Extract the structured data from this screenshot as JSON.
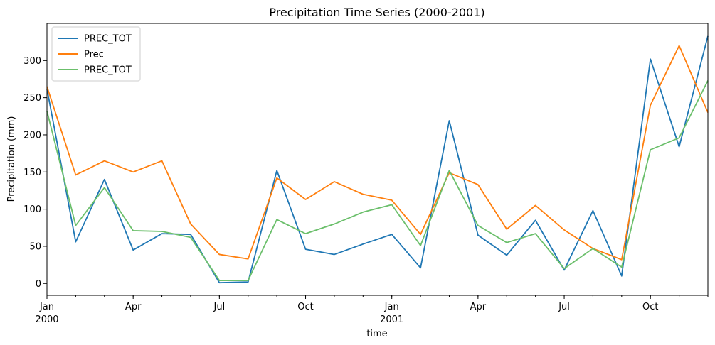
{
  "chart_data": {
    "type": "line",
    "title": "Precipitation Time Series (2000-2001)",
    "xlabel": "time",
    "ylabel": "Precipitation (mm)",
    "x": [
      "2000-01",
      "2000-02",
      "2000-03",
      "2000-04",
      "2000-05",
      "2000-06",
      "2000-07",
      "2000-08",
      "2000-09",
      "2000-10",
      "2000-11",
      "2000-12",
      "2001-01",
      "2001-02",
      "2001-03",
      "2001-04",
      "2001-05",
      "2001-06",
      "2001-07",
      "2001-08",
      "2001-09",
      "2001-10",
      "2001-11",
      "2001-12"
    ],
    "xlim": [
      "2000-01",
      "2001-12"
    ],
    "ylim": [
      -16,
      350
    ],
    "x_ticks": [
      {
        "x": "2000-01",
        "label": "Jan",
        "sublabel": "2000"
      },
      {
        "x": "2000-04",
        "label": "Apr",
        "sublabel": ""
      },
      {
        "x": "2000-07",
        "label": "Jul",
        "sublabel": ""
      },
      {
        "x": "2000-10",
        "label": "Oct",
        "sublabel": ""
      },
      {
        "x": "2001-01",
        "label": "Jan",
        "sublabel": "2001"
      },
      {
        "x": "2001-04",
        "label": "Apr",
        "sublabel": ""
      },
      {
        "x": "2001-07",
        "label": "Jul",
        "sublabel": ""
      },
      {
        "x": "2001-10",
        "label": "Oct",
        "sublabel": ""
      }
    ],
    "y_ticks": [
      0,
      50,
      100,
      150,
      200,
      250,
      300
    ],
    "grid": false,
    "legend_position": "top-left",
    "series": [
      {
        "name": "PREC_TOT",
        "color": "#1f77b4",
        "values": [
          262,
          56,
          140,
          45,
          67,
          66,
          1,
          2,
          152,
          46,
          39,
          53,
          66,
          21,
          219,
          65,
          38,
          85,
          18,
          98,
          10,
          302,
          184,
          333
        ]
      },
      {
        "name": "Prec",
        "color": "#ff7f0e",
        "values": [
          265,
          146,
          165,
          150,
          165,
          80,
          39,
          33,
          142,
          113,
          137,
          120,
          112,
          66,
          149,
          133,
          73,
          105,
          72,
          47,
          32,
          240,
          320,
          230
        ]
      },
      {
        "name": "PREC_TOT",
        "color": "#6bbf6b",
        "values": [
          232,
          78,
          129,
          71,
          70,
          62,
          4,
          4,
          86,
          67,
          80,
          96,
          106,
          51,
          152,
          78,
          55,
          67,
          20,
          47,
          22,
          180,
          196,
          273
        ]
      }
    ]
  }
}
